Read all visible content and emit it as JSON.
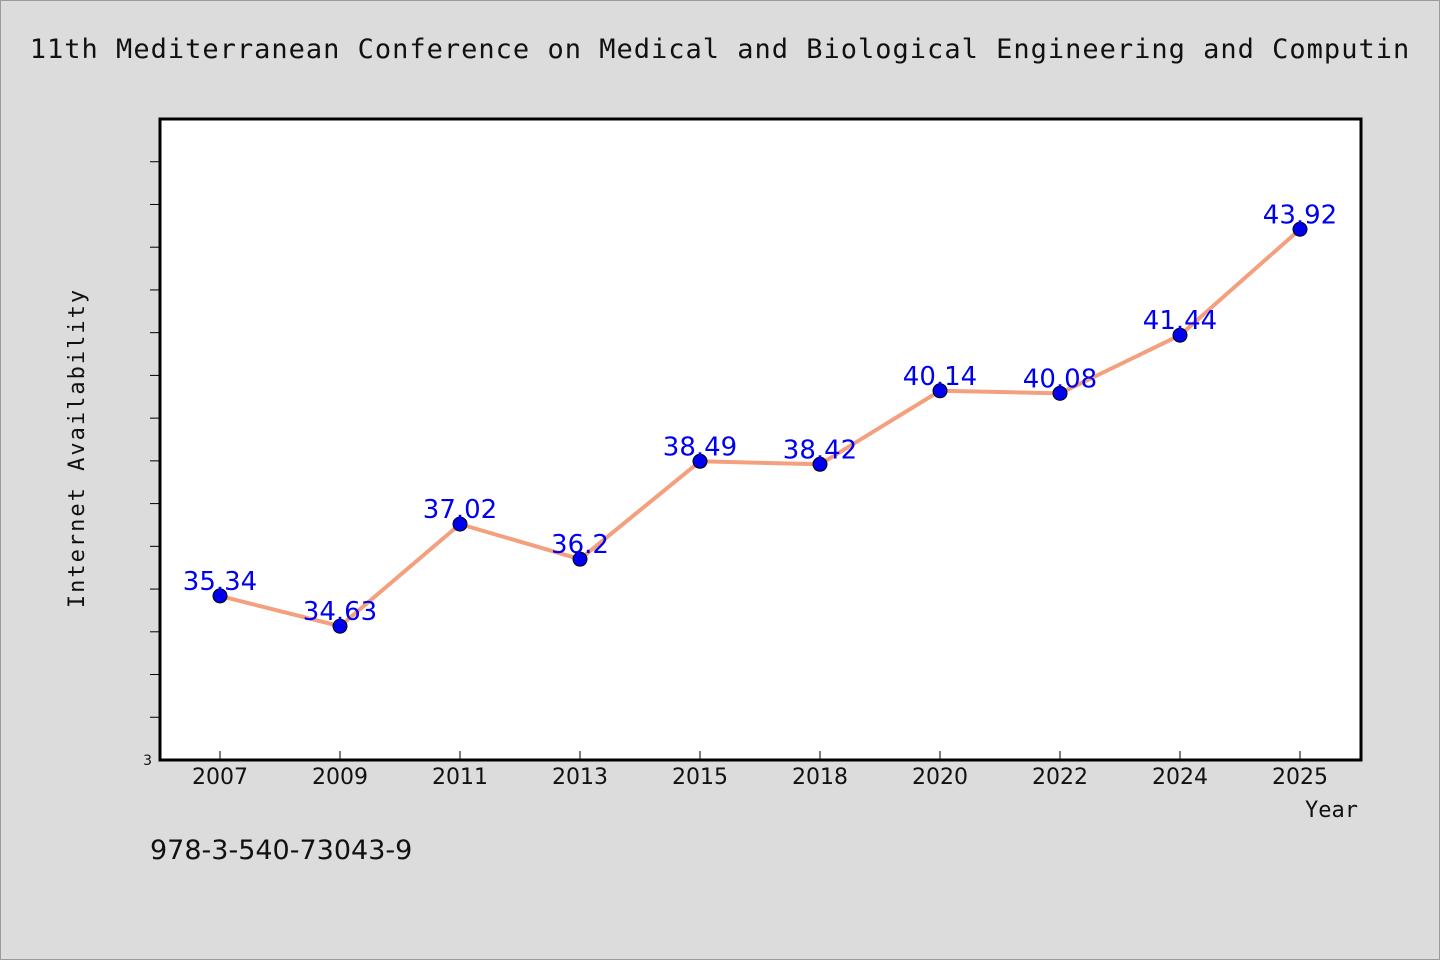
{
  "chart_data": {
    "type": "line",
    "title": "11th Mediterranean Conference on Medical and Biological Engineering and Computin",
    "xlabel": "Year",
    "ylabel": "Internet Availability",
    "categories": [
      "2007",
      "2009",
      "2011",
      "2013",
      "2015",
      "2018",
      "2020",
      "2022",
      "2024",
      "2025"
    ],
    "series": [
      {
        "values": [
          35.34,
          34.63,
          37.02,
          36.2,
          38.49,
          38.42,
          40.14,
          40.08,
          41.44,
          43.92
        ],
        "data_labels": [
          "35.34",
          "34.63",
          "37.02",
          "36.2",
          "38.49",
          "38.42",
          "40.14",
          "40.08",
          "41.44",
          "43.92"
        ]
      }
    ],
    "ylim": [
      31.5,
      46.5
    ],
    "y_tick_labels": [
      "3"
    ],
    "grid": false,
    "line_color": "#f4a07e",
    "marker_color": "#0000ee",
    "label_color": "#0000ee"
  },
  "footnote": "978-3-540-73043-9"
}
